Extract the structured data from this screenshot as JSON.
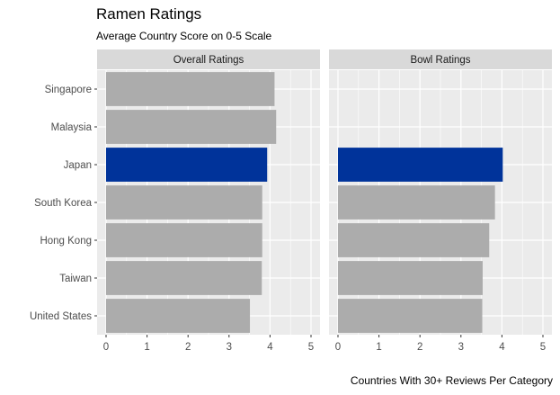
{
  "title": "Ramen Ratings",
  "subtitle": "Average Country Score on 0-5 Scale",
  "caption": "Countries With 30+ Reviews Per Category",
  "colors": {
    "highlight": "#00339a",
    "bar": "#acacac",
    "panel_bg": "#ebebeb",
    "strip_bg": "#d9d9d9",
    "grid": "#ffffff"
  },
  "chart_data": {
    "type": "bar",
    "orientation": "horizontal",
    "title": "Ramen Ratings",
    "subtitle": "Average Country Score on 0-5 Scale",
    "caption": "Countries With 30+ Reviews Per Category",
    "categories": [
      "Singapore",
      "Malaysia",
      "Japan",
      "South Korea",
      "Hong Kong",
      "Taiwan",
      "United States"
    ],
    "xlim": [
      0,
      5
    ],
    "xticks": [
      0,
      1,
      2,
      3,
      4,
      5
    ],
    "grid": true,
    "highlight_category": "Japan",
    "panels": [
      {
        "name": "Overall Ratings",
        "values": [
          4.11,
          4.15,
          3.93,
          3.81,
          3.81,
          3.8,
          3.51
        ]
      },
      {
        "name": "Bowl Ratings",
        "values": [
          null,
          null,
          4.02,
          3.83,
          3.69,
          3.53,
          3.52
        ]
      }
    ]
  }
}
